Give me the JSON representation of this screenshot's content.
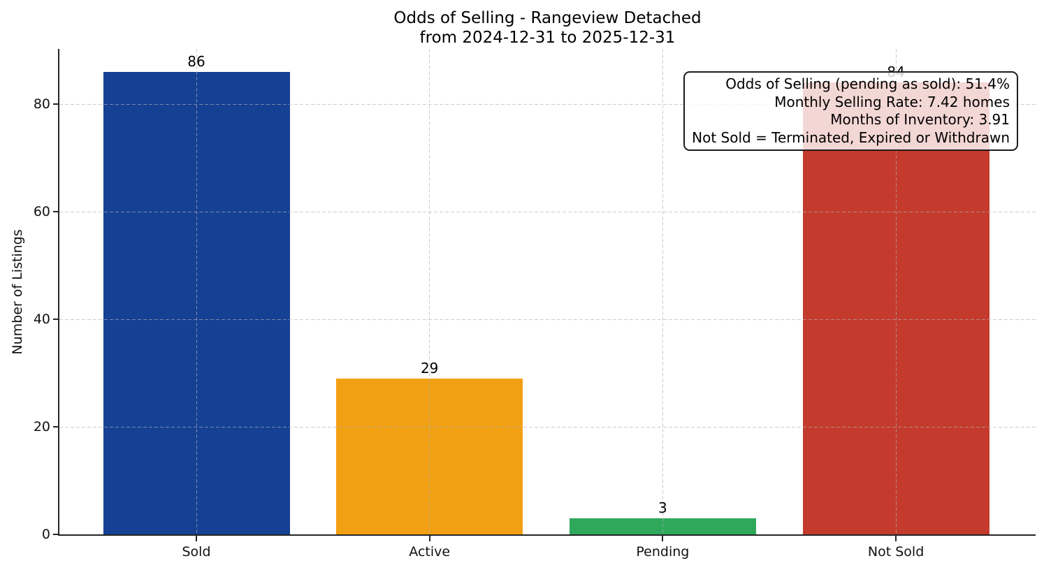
{
  "figure": {
    "background": "#ffffff"
  },
  "chart_data": {
    "type": "bar",
    "title": "Odds of Selling - Rangeview Detached",
    "subtitle": "from 2024-12-31 to 2025-12-31",
    "xlabel": "",
    "ylabel": "Number of Listings",
    "categories": [
      "Sold",
      "Active",
      "Pending",
      "Not Sold"
    ],
    "values": [
      86,
      29,
      3,
      84
    ],
    "bar_value_labels": [
      "86",
      "29",
      "3",
      "84"
    ],
    "bar_colors": [
      "#154094",
      "#f2a013",
      "#2fa85c",
      "#c43b2d"
    ],
    "yticks": [
      0,
      20,
      40,
      60,
      80
    ],
    "ylim": [
      0,
      90.3
    ],
    "grid": {
      "horizontal": true,
      "vertical": true,
      "style": "dashed",
      "color": "#c9c9c9"
    },
    "legend_position": "none",
    "annotation": {
      "position": "top-right",
      "text_align": "right",
      "lines": [
        "Odds of Selling (pending as sold): 51.4%",
        "Monthly Selling Rate: 7.42 homes",
        "Months of Inventory: 3.91",
        "Not Sold = Terminated, Expired or Withdrawn"
      ],
      "stats": {
        "odds_of_selling_pending_as_sold_pct": 51.4,
        "monthly_selling_rate_homes": 7.42,
        "months_of_inventory": 3.91
      }
    }
  }
}
